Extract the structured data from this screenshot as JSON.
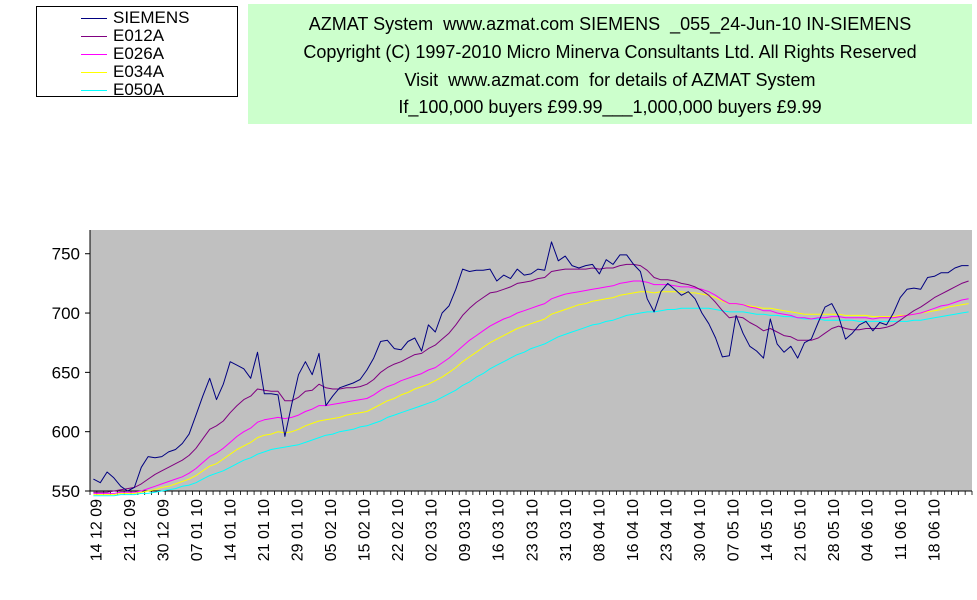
{
  "legend": {
    "items": [
      {
        "label": "SIEMENS",
        "color": "#000080"
      },
      {
        "label": "E012A",
        "color": "#800080"
      },
      {
        "label": "E026A",
        "color": "#ff00ff"
      },
      {
        "label": "E034A",
        "color": "#ffff00"
      },
      {
        "label": "E050A",
        "color": "#00ffff"
      }
    ]
  },
  "header": {
    "line1": "AZMAT System  www.azmat.com SIEMENS  _055_24-Jun-10 IN-SIEMENS",
    "line2": "Copyright (C) 1997-2010 Micro Minerva Consultants Ltd. All Rights Reserved",
    "line3": "Visit  www.azmat.com  for details of AZMAT System",
    "line4": "If_100,000 buyers £99.99___1,000,000 buyers £9.99",
    "background": "#ccffcc"
  },
  "chart_data": {
    "type": "line",
    "plot_background": "#c0c0c0",
    "ylim": [
      550,
      770
    ],
    "y_ticks": [
      550,
      600,
      650,
      700,
      750
    ],
    "x_tick_labels": [
      "14 12 09",
      "21 12 09",
      "30 12 09",
      "07 01 10",
      "14 01 10",
      "21 01 10",
      "29 01 10",
      "05 02 10",
      "15 02 10",
      "22 02 10",
      "02 03 10",
      "09 03 10",
      "16 03 10",
      "23 03 10",
      "31 03 10",
      "08 04 10",
      "16 04 10",
      "23 04 10",
      "30 04 10",
      "07 05 10",
      "14 05 10",
      "21 05 10",
      "28 05 10",
      "04 06 10",
      "11 06 10",
      "18 06 10"
    ],
    "series": [
      {
        "name": "SIEMENS",
        "color": "#000080",
        "values": [
          560,
          557,
          566,
          561,
          554,
          550,
          553,
          570,
          579,
          578,
          579,
          583,
          585,
          590,
          598,
          614,
          630,
          645,
          627,
          640,
          659,
          656,
          653,
          645,
          667,
          632,
          632,
          631,
          596,
          623,
          648,
          659,
          648,
          666,
          622,
          630,
          637,
          639,
          641,
          644,
          652,
          662,
          676,
          677,
          670,
          669,
          676,
          679,
          668,
          690,
          684,
          700,
          706,
          720,
          737,
          735,
          736,
          736,
          737,
          727,
          732,
          729,
          737,
          732,
          733,
          737,
          736,
          760,
          744,
          748,
          740,
          738,
          740,
          741,
          733,
          745,
          741,
          749,
          749,
          741,
          735,
          712,
          701,
          718,
          725,
          720,
          715,
          718,
          712,
          700,
          691,
          679,
          663,
          664,
          698,
          683,
          672,
          668,
          662,
          695,
          674,
          667,
          672,
          662,
          675,
          678,
          692,
          705,
          708,
          697,
          678,
          683,
          690,
          693,
          685,
          692,
          690,
          700,
          713,
          720,
          721,
          720,
          730,
          731,
          734,
          734,
          738,
          740,
          740
        ]
      },
      {
        "name": "E012A",
        "color": "#800080",
        "values": [
          549,
          549,
          549,
          550,
          551,
          552,
          553,
          556,
          560,
          564,
          567,
          570,
          573,
          576,
          580,
          586,
          594,
          602,
          605,
          609,
          616,
          622,
          627,
          630,
          636,
          635,
          634,
          634,
          626,
          626,
          629,
          634,
          635,
          640,
          637,
          636,
          636,
          637,
          637,
          638,
          640,
          644,
          650,
          654,
          657,
          659,
          662,
          665,
          666,
          670,
          673,
          678,
          683,
          690,
          698,
          704,
          709,
          713,
          717,
          718,
          720,
          722,
          725,
          726,
          727,
          729,
          730,
          735,
          736,
          737,
          737,
          737,
          737,
          738,
          737,
          738,
          738,
          740,
          741,
          741,
          740,
          736,
          730,
          728,
          728,
          727,
          725,
          724,
          722,
          719,
          715,
          709,
          702,
          696,
          697,
          696,
          692,
          689,
          685,
          687,
          684,
          681,
          680,
          677,
          677,
          677,
          679,
          683,
          687,
          689,
          687,
          686,
          686,
          687,
          687,
          687,
          688,
          690,
          694,
          698,
          702,
          705,
          709,
          713,
          716,
          719,
          722,
          725,
          727
        ]
      },
      {
        "name": "E026A",
        "color": "#ff00ff",
        "values": [
          548,
          548,
          548,
          548,
          549,
          549,
          549,
          550,
          552,
          554,
          556,
          558,
          560,
          562,
          565,
          569,
          574,
          579,
          582,
          586,
          591,
          596,
          600,
          603,
          608,
          610,
          611,
          612,
          611,
          612,
          614,
          617,
          619,
          622,
          622,
          623,
          624,
          625,
          626,
          627,
          628,
          631,
          635,
          638,
          640,
          643,
          645,
          647,
          649,
          652,
          654,
          658,
          662,
          667,
          672,
          677,
          681,
          685,
          689,
          692,
          695,
          697,
          700,
          702,
          704,
          706,
          708,
          712,
          714,
          716,
          717,
          718,
          719,
          720,
          721,
          722,
          723,
          725,
          726,
          727,
          727,
          726,
          724,
          724,
          724,
          723,
          722,
          722,
          721,
          720,
          718,
          715,
          711,
          708,
          708,
          707,
          705,
          704,
          702,
          702,
          700,
          699,
          698,
          696,
          696,
          695,
          696,
          696,
          697,
          697,
          696,
          696,
          696,
          696,
          695,
          696,
          696,
          696,
          697,
          698,
          699,
          700,
          702,
          704,
          706,
          707,
          709,
          711,
          712
        ]
      },
      {
        "name": "E034A",
        "color": "#ffff00",
        "values": [
          547,
          547,
          547,
          547,
          548,
          548,
          548,
          549,
          550,
          551,
          553,
          554,
          556,
          558,
          560,
          563,
          567,
          571,
          573,
          577,
          581,
          585,
          588,
          591,
          595,
          597,
          598,
          600,
          599,
          600,
          602,
          605,
          607,
          609,
          610,
          611,
          612,
          614,
          615,
          616,
          617,
          620,
          623,
          626,
          628,
          631,
          633,
          636,
          638,
          640,
          643,
          646,
          650,
          654,
          659,
          663,
          667,
          671,
          675,
          678,
          681,
          684,
          687,
          689,
          691,
          693,
          695,
          699,
          701,
          703,
          705,
          707,
          708,
          710,
          711,
          712,
          713,
          715,
          716,
          717,
          718,
          718,
          717,
          718,
          718,
          718,
          718,
          717,
          717,
          716,
          715,
          713,
          710,
          708,
          708,
          707,
          706,
          705,
          704,
          704,
          703,
          702,
          701,
          700,
          699,
          699,
          699,
          699,
          699,
          699,
          698,
          698,
          698,
          698,
          697,
          697,
          697,
          697,
          698,
          698,
          699,
          700,
          701,
          702,
          703,
          705,
          706,
          707,
          708
        ]
      },
      {
        "name": "E050A",
        "color": "#00ffff",
        "values": [
          546,
          546,
          546,
          546,
          547,
          547,
          547,
          548,
          548,
          549,
          550,
          551,
          552,
          554,
          555,
          557,
          560,
          563,
          565,
          567,
          570,
          573,
          576,
          578,
          581,
          583,
          585,
          586,
          587,
          588,
          589,
          591,
          593,
          595,
          597,
          598,
          600,
          601,
          602,
          604,
          605,
          607,
          609,
          612,
          614,
          616,
          618,
          620,
          622,
          624,
          626,
          629,
          632,
          635,
          639,
          642,
          646,
          649,
          653,
          656,
          659,
          662,
          665,
          667,
          670,
          672,
          674,
          677,
          680,
          682,
          684,
          686,
          688,
          690,
          691,
          693,
          694,
          696,
          698,
          699,
          700,
          701,
          701,
          702,
          703,
          703,
          704,
          704,
          704,
          704,
          704,
          703,
          702,
          701,
          701,
          701,
          700,
          699,
          699,
          698,
          698,
          697,
          697,
          696,
          695,
          695,
          695,
          694,
          694,
          694,
          694,
          694,
          693,
          693,
          693,
          693,
          693,
          693,
          693,
          693,
          694,
          694,
          695,
          696,
          697,
          698,
          699,
          700,
          701
        ]
      }
    ]
  }
}
